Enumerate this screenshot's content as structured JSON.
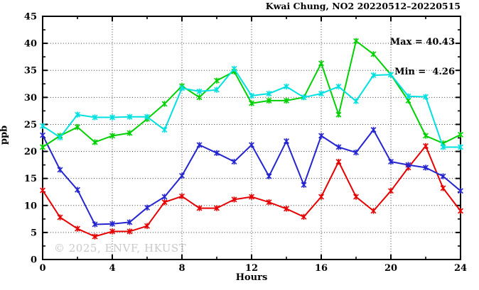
{
  "title": "Kwai Chung, NO2 20220512–20220515",
  "stats": {
    "max_label": "Max = 40.43",
    "min_label": "Min =  4.26"
  },
  "watermark": "© 2025, ENVF, HKUST",
  "chart_data": {
    "type": "line",
    "title": "Kwai Chung, NO2 20220512–20220515",
    "xlabel": "Hours",
    "ylabel": "ppb",
    "xlim": [
      0,
      24
    ],
    "ylim": [
      0,
      45
    ],
    "x_major_ticks": [
      0,
      4,
      8,
      12,
      16,
      20,
      24
    ],
    "x_minor_ticks": [
      2,
      6,
      10,
      14,
      18,
      22
    ],
    "y_major_ticks": [
      0,
      5,
      10,
      15,
      20,
      25,
      30,
      35,
      40,
      45
    ],
    "y_minor_ticks": [
      2.5,
      7.5,
      12.5,
      17.5,
      22.5,
      27.5,
      32.5,
      37.5,
      42.5
    ],
    "grid": true,
    "legend_position": "none",
    "max": 40.43,
    "min": 4.26,
    "x": [
      0,
      1,
      2,
      3,
      4,
      5,
      6,
      7,
      8,
      9,
      10,
      11,
      12,
      13,
      14,
      15,
      16,
      17,
      18,
      19,
      20,
      21,
      22,
      23,
      24
    ],
    "series": [
      {
        "name": "red",
        "color": "#e60000",
        "values": [
          12.8,
          7.8,
          5.7,
          4.26,
          5.2,
          5.2,
          6.2,
          10.6,
          11.7,
          9.5,
          9.5,
          11.1,
          11.6,
          10.6,
          9.4,
          7.9,
          11.6,
          18.1,
          11.6,
          9.0,
          12.7,
          17.0,
          21.0,
          13.2,
          9.0
        ]
      },
      {
        "name": "blue",
        "color": "#2525d0",
        "values": [
          23.0,
          16.6,
          12.9,
          6.5,
          6.6,
          6.9,
          9.6,
          11.6,
          15.5,
          21.2,
          19.7,
          18.1,
          21.2,
          15.4,
          21.9,
          13.8,
          22.9,
          20.8,
          19.8,
          24.0,
          18.1,
          17.5,
          17.0,
          15.4,
          12.7
        ]
      },
      {
        "name": "green",
        "color": "#00d000",
        "values": [
          20.8,
          22.9,
          24.5,
          21.7,
          22.9,
          23.4,
          26.0,
          28.8,
          32.1,
          30.0,
          33.1,
          34.8,
          28.9,
          29.4,
          29.4,
          30.0,
          36.3,
          26.8,
          40.43,
          38.0,
          34.2,
          29.4,
          22.9,
          21.5,
          23.1
        ]
      },
      {
        "name": "cyan",
        "color": "#00e0e0",
        "values": [
          24.7,
          22.6,
          26.8,
          26.3,
          26.3,
          26.4,
          26.4,
          24.0,
          31.7,
          31.1,
          31.4,
          35.3,
          30.3,
          30.7,
          32.0,
          30.0,
          30.7,
          32.0,
          29.3,
          34.1,
          34.2,
          30.2,
          30.1,
          20.8,
          20.8
        ]
      }
    ]
  }
}
